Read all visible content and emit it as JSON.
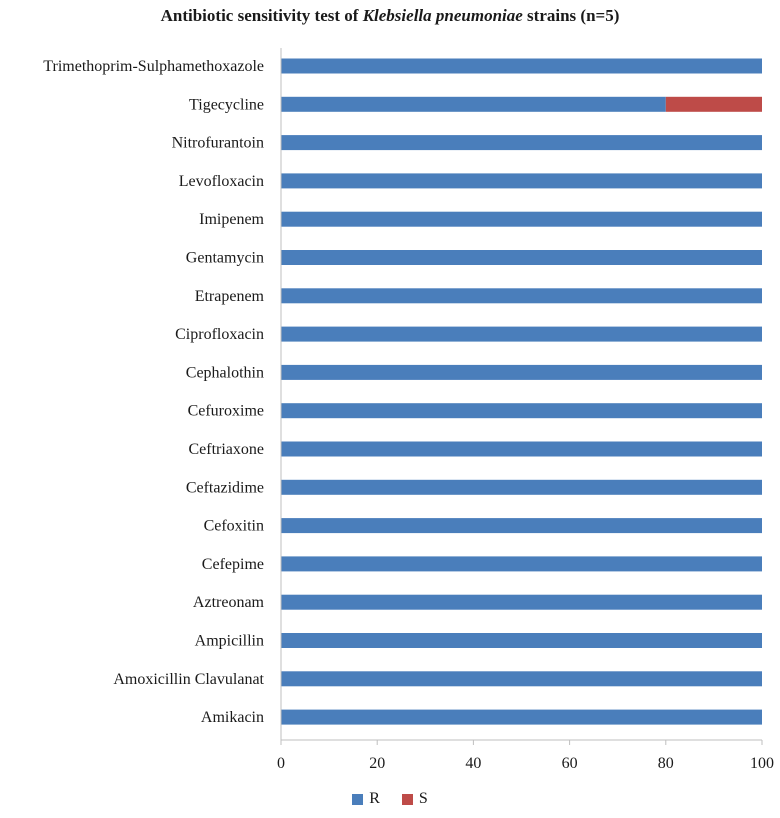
{
  "chart_data": {
    "type": "bar",
    "orientation": "horizontal",
    "stacked": true,
    "title": {
      "prefix": "Antibiotic  sensitivity test of ",
      "italic": "Klebsiella pneumoniae",
      "suffix": " strains (n=5)"
    },
    "categories": [
      "Trimethoprim-Sulphamethoxazole",
      "Tigecycline",
      "Nitrofurantoin",
      "Levofloxacin",
      "Imipenem",
      "Gentamycin",
      "Etrapenem",
      "Ciprofloxacin",
      "Cephalothin",
      "Cefuroxime",
      "Ceftriaxone",
      "Ceftazidime",
      "Cefoxitin",
      "Cefepime",
      "Aztreonam",
      "Ampicillin",
      "Amoxicillin Clavulanat",
      "Amikacin"
    ],
    "series": [
      {
        "name": "R",
        "color": "#4a7ebb",
        "values": [
          100,
          80,
          100,
          100,
          100,
          100,
          100,
          100,
          100,
          100,
          100,
          100,
          100,
          100,
          100,
          100,
          100,
          100
        ]
      },
      {
        "name": "S",
        "color": "#be4b48",
        "values": [
          0,
          20,
          0,
          0,
          0,
          0,
          0,
          0,
          0,
          0,
          0,
          0,
          0,
          0,
          0,
          0,
          0,
          0
        ]
      }
    ],
    "xlim": [
      0,
      100
    ],
    "xticks": [
      0,
      20,
      40,
      60,
      80,
      100
    ],
    "grid": false,
    "legend_position": "bottom"
  }
}
